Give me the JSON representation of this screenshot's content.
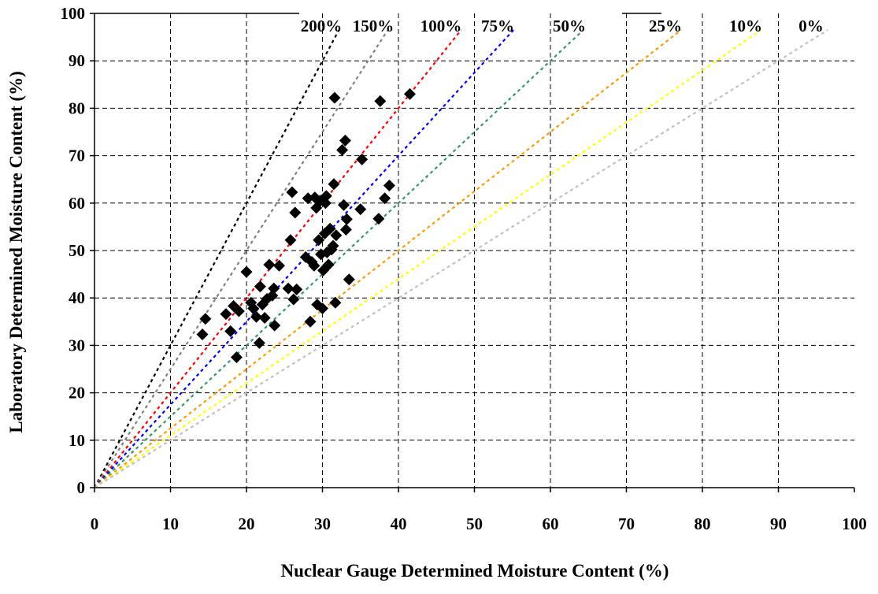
{
  "chart_data": {
    "type": "scatter",
    "title": "",
    "xlabel": "Nuclear Gauge Determined Moisture Content (%)",
    "ylabel": "Laboratory Determined Moisture Content (%)",
    "xlim": [
      0,
      100
    ],
    "ylim": [
      0,
      100
    ],
    "xticks": [
      "0",
      "10",
      "20",
      "30",
      "40",
      "50",
      "60",
      "70",
      "80",
      "90",
      "100"
    ],
    "yticks": [
      "0",
      "10",
      "20",
      "30",
      "40",
      "50",
      "60",
      "70",
      "80",
      "90",
      "100"
    ],
    "grid": true,
    "marker": "diamond",
    "marker_color": "#000000",
    "reference_lines": [
      {
        "label": "200%",
        "factor": 3.0,
        "color": "#000000"
      },
      {
        "label": "150%",
        "factor": 2.5,
        "color": "#808080"
      },
      {
        "label": "100%",
        "factor": 2.0,
        "color": "#ff0000"
      },
      {
        "label": "75%",
        "factor": 1.75,
        "color": "#0000ff"
      },
      {
        "label": "50%",
        "factor": 1.5,
        "color": "#339966"
      },
      {
        "label": "25%",
        "factor": 1.25,
        "color": "#ff9900"
      },
      {
        "label": "10%",
        "factor": 1.1,
        "color": "#ffff00"
      },
      {
        "label": "0%",
        "factor": 1.0,
        "color": "#c0c0c0"
      }
    ],
    "points": [
      [
        14.2,
        32.3
      ],
      [
        14.6,
        35.6
      ],
      [
        17.3,
        36.6
      ],
      [
        17.9,
        33.0
      ],
      [
        18.3,
        38.3
      ],
      [
        18.7,
        27.5
      ],
      [
        19.0,
        37.2
      ],
      [
        20.0,
        45.5
      ],
      [
        20.6,
        39.0
      ],
      [
        20.9,
        37.8
      ],
      [
        21.3,
        36.0
      ],
      [
        21.7,
        30.5
      ],
      [
        21.8,
        42.4
      ],
      [
        22.1,
        38.6
      ],
      [
        22.4,
        35.8
      ],
      [
        22.7,
        39.8
      ],
      [
        23.0,
        47.0
      ],
      [
        23.4,
        40.5
      ],
      [
        23.6,
        42.0
      ],
      [
        23.7,
        34.2
      ],
      [
        24.3,
        46.8
      ],
      [
        25.5,
        42.0
      ],
      [
        25.8,
        52.2
      ],
      [
        26.0,
        62.3
      ],
      [
        26.2,
        39.7
      ],
      [
        26.4,
        58.0
      ],
      [
        26.6,
        41.8
      ],
      [
        27.8,
        48.6
      ],
      [
        28.1,
        61.0
      ],
      [
        28.4,
        35.0
      ],
      [
        28.6,
        47.6
      ],
      [
        28.9,
        46.8
      ],
      [
        29.0,
        61.2
      ],
      [
        29.2,
        59.0
      ],
      [
        29.3,
        38.6
      ],
      [
        29.5,
        52.2
      ],
      [
        29.7,
        60.5
      ],
      [
        29.8,
        49.2
      ],
      [
        30.0,
        37.8
      ],
      [
        30.1,
        45.8
      ],
      [
        30.3,
        53.6
      ],
      [
        30.4,
        60.0
      ],
      [
        30.5,
        61.5
      ],
      [
        30.6,
        49.6
      ],
      [
        30.8,
        47.0
      ],
      [
        31.0,
        54.6
      ],
      [
        31.2,
        50.2
      ],
      [
        31.4,
        51.0
      ],
      [
        31.5,
        64.0
      ],
      [
        31.6,
        82.2
      ],
      [
        31.7,
        39.0
      ],
      [
        31.8,
        53.2
      ],
      [
        32.6,
        71.2
      ],
      [
        32.8,
        59.6
      ],
      [
        33.0,
        73.2
      ],
      [
        33.1,
        54.4
      ],
      [
        33.2,
        56.6
      ],
      [
        33.5,
        43.9
      ],
      [
        35.2,
        69.2
      ],
      [
        35.0,
        58.7
      ],
      [
        37.4,
        56.7
      ],
      [
        37.6,
        81.5
      ],
      [
        38.2,
        61.0
      ],
      [
        38.8,
        63.7
      ],
      [
        41.5,
        83.0
      ]
    ]
  }
}
